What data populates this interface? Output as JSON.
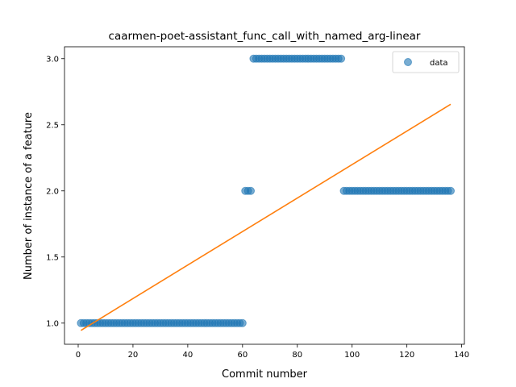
{
  "chart_data": {
    "type": "scatter",
    "title": "caarmen-poet-assistant_func_call_with_named_arg-linear",
    "xlabel": "Commit number",
    "ylabel": "Number of instance of a feature",
    "xlim": [
      -5,
      141
    ],
    "ylim": [
      0.84,
      3.09
    ],
    "xticks": [
      0,
      20,
      40,
      60,
      80,
      100,
      120,
      140
    ],
    "yticks": [
      1.0,
      1.5,
      2.0,
      2.5,
      3.0
    ],
    "xtick_labels": [
      "0",
      "20",
      "40",
      "60",
      "80",
      "100",
      "120",
      "140"
    ],
    "ytick_labels": [
      "1.0",
      "1.5",
      "2.0",
      "2.5",
      "3.0"
    ],
    "grid": false,
    "legend": {
      "position": "top-right",
      "entries": [
        "data"
      ]
    },
    "colors": {
      "data": "#1f77b4",
      "fit": "#ff7f0e"
    },
    "series": [
      {
        "name": "data",
        "kind": "scatter",
        "segments": [
          {
            "x_start": 1,
            "x_end": 60,
            "y": 1.0
          },
          {
            "x_start": 61,
            "x_end": 63,
            "y": 2.0
          },
          {
            "x_start": 64,
            "x_end": 96,
            "y": 3.0
          },
          {
            "x_start": 97,
            "x_end": 136,
            "y": 2.0
          }
        ]
      },
      {
        "kind": "line",
        "x": [
          1,
          136
        ],
        "y": [
          0.945,
          2.655
        ]
      }
    ]
  }
}
